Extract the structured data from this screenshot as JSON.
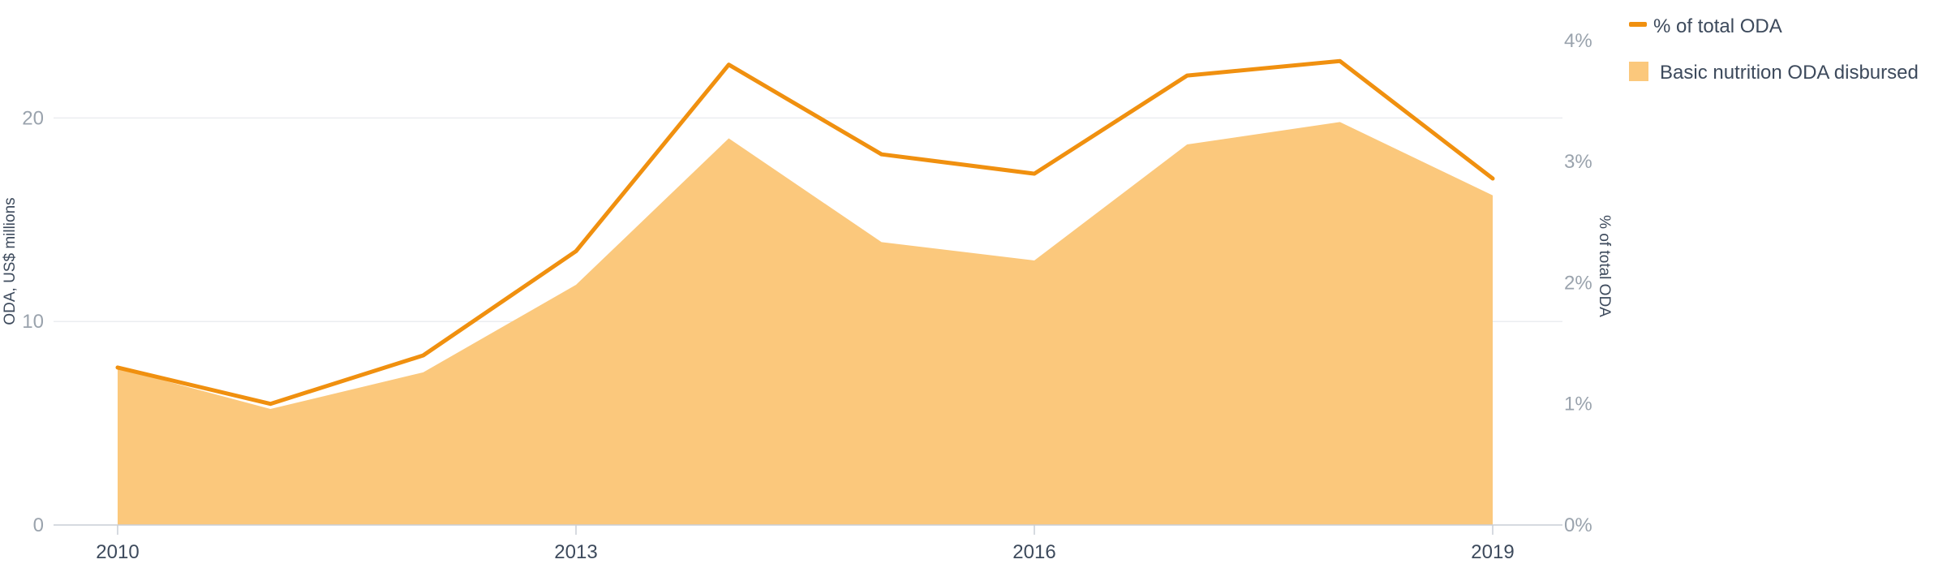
{
  "chart_data": {
    "type": "line+area",
    "x": [
      2010,
      2011,
      2012,
      2013,
      2014,
      2015,
      2016,
      2017,
      2018,
      2019
    ],
    "x_tick_labels": [
      "2010",
      "2013",
      "2016",
      "2019"
    ],
    "x_tick_values": [
      2010,
      2013,
      2016,
      2019
    ],
    "left_axis": {
      "label": "ODA, US$ millions",
      "range": [
        0,
        25
      ],
      "ticks": [
        0,
        10,
        20
      ],
      "tick_labels": [
        "0",
        "10",
        "20"
      ]
    },
    "right_axis": {
      "label": "% of total ODA",
      "range": [
        0,
        4.2
      ],
      "ticks": [
        0,
        1,
        2,
        3,
        4
      ],
      "tick_labels": [
        "0%",
        "1%",
        "2%",
        "3%",
        "4%"
      ]
    },
    "series": [
      {
        "name": "% of total ODA",
        "type": "line",
        "axis": "right",
        "color": "#f0900f",
        "values": [
          1.3,
          1.0,
          1.4,
          2.26,
          3.8,
          3.06,
          2.9,
          3.71,
          3.83,
          2.86
        ]
      },
      {
        "name": "Basic nutrition ODA disbursed",
        "type": "area",
        "axis": "left",
        "color": "#fbc87c",
        "values": [
          7.7,
          5.7,
          7.5,
          11.8,
          19.0,
          13.9,
          13.0,
          18.7,
          19.8,
          16.2
        ]
      }
    ],
    "grid": "horizontal",
    "legend": "top-right"
  }
}
